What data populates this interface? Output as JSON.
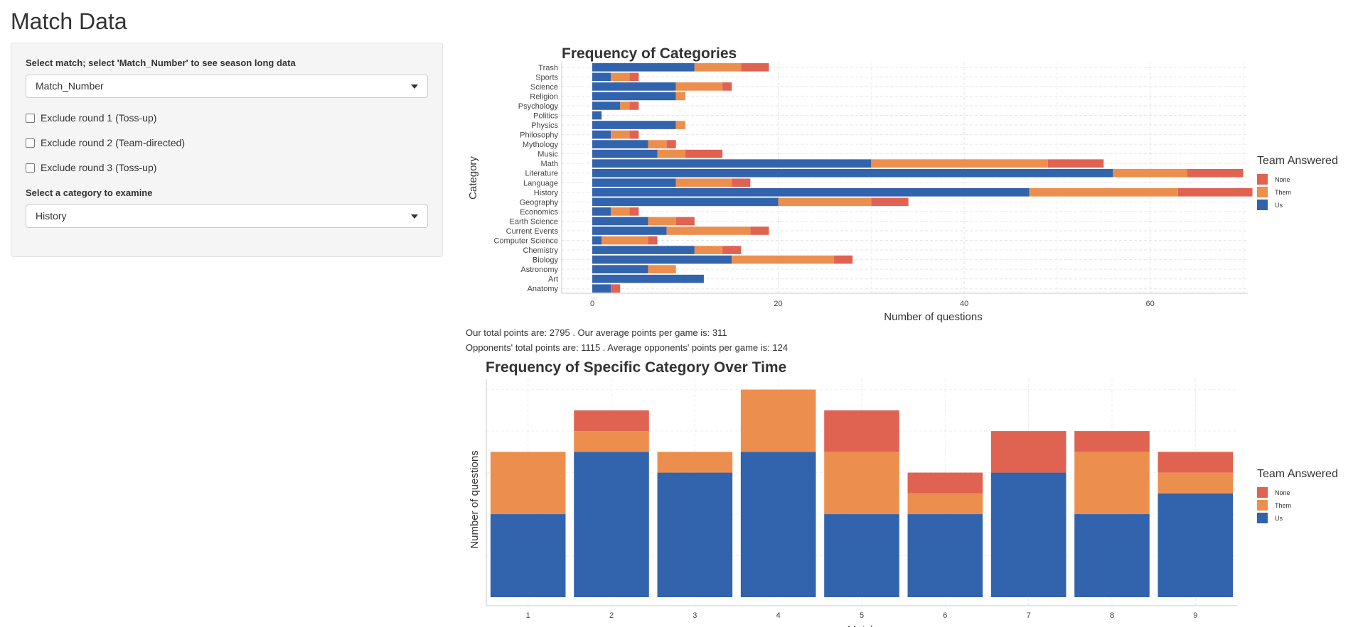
{
  "page": {
    "title": "Match Data"
  },
  "sidebar": {
    "match_label": "Select match; select 'Match_Number' to see season long data",
    "match_value": "Match_Number",
    "checkboxes": [
      "Exclude round 1 (Toss-up)",
      "Exclude round 2 (Team-directed)",
      "Exclude round 3 (Toss-up)"
    ],
    "category_label": "Select a category to examine",
    "category_value": "History",
    "caret_icon": "chevron-down-icon"
  },
  "summary": {
    "line1": "Our total points are: 2795 . Our average points per game is: 311",
    "line2": "Opponents' total points are: 1115 . Average opponents' points per game is: 124"
  },
  "colors": {
    "None": "#e06352",
    "Them": "#ec8f4e",
    "Us": "#3263ad"
  },
  "chart_data": [
    {
      "type": "bar",
      "orientation": "horizontal",
      "stacked": true,
      "title": "Frequency of Categories",
      "xlabel": "Number of questions",
      "ylabel": "Category",
      "xlim": [
        0,
        73
      ],
      "xticks": [
        0,
        20,
        40,
        60
      ],
      "grid": true,
      "legend": {
        "title": "Team Answered",
        "position": "right",
        "entries": [
          "None",
          "Them",
          "Us"
        ]
      },
      "categories": [
        "Trash",
        "Sports",
        "Science",
        "Religion",
        "Psychology",
        "Politics",
        "Physics",
        "Philosophy",
        "Mythology",
        "Music",
        "Math",
        "Literature",
        "Language",
        "History",
        "Geography",
        "Economics",
        "Earth Science",
        "Current Events",
        "Computer Science",
        "Chemistry",
        "Biology",
        "Astronomy",
        "Art",
        "Anatomy"
      ],
      "series": [
        {
          "name": "Us",
          "values": [
            11,
            2,
            9,
            9,
            3,
            1,
            9,
            2,
            6,
            7,
            30,
            56,
            9,
            47,
            20,
            2,
            6,
            8,
            1,
            11,
            15,
            6,
            12,
            2
          ]
        },
        {
          "name": "Them",
          "values": [
            5,
            2,
            5,
            1,
            1,
            0,
            1,
            2,
            2,
            3,
            19,
            8,
            6,
            16,
            10,
            2,
            3,
            9,
            5,
            3,
            11,
            3,
            0,
            0
          ]
        },
        {
          "name": "None",
          "values": [
            3,
            1,
            1,
            0,
            1,
            0,
            0,
            1,
            1,
            4,
            6,
            6,
            2,
            8,
            4,
            1,
            2,
            2,
            1,
            2,
            2,
            0,
            0,
            1
          ]
        }
      ]
    },
    {
      "type": "bar",
      "stacked": true,
      "title": "Frequency of Specific Category Over Time",
      "xlabel": "Match",
      "ylabel": "Number of questions",
      "ylim": [
        0,
        10.5
      ],
      "grid": true,
      "legend": {
        "title": "Team Answered",
        "position": "right",
        "entries": [
          "None",
          "Them",
          "Us"
        ]
      },
      "categories": [
        "1",
        "2",
        "3",
        "4",
        "5",
        "6",
        "7",
        "8",
        "9"
      ],
      "series": [
        {
          "name": "Us",
          "values": [
            4,
            7,
            6,
            7,
            4,
            4,
            6,
            4,
            5
          ]
        },
        {
          "name": "Them",
          "values": [
            3,
            1,
            1,
            3,
            3,
            1,
            0,
            3,
            1
          ]
        },
        {
          "name": "None",
          "values": [
            0,
            1,
            0,
            0,
            2,
            1,
            2,
            1,
            1
          ]
        }
      ]
    }
  ]
}
